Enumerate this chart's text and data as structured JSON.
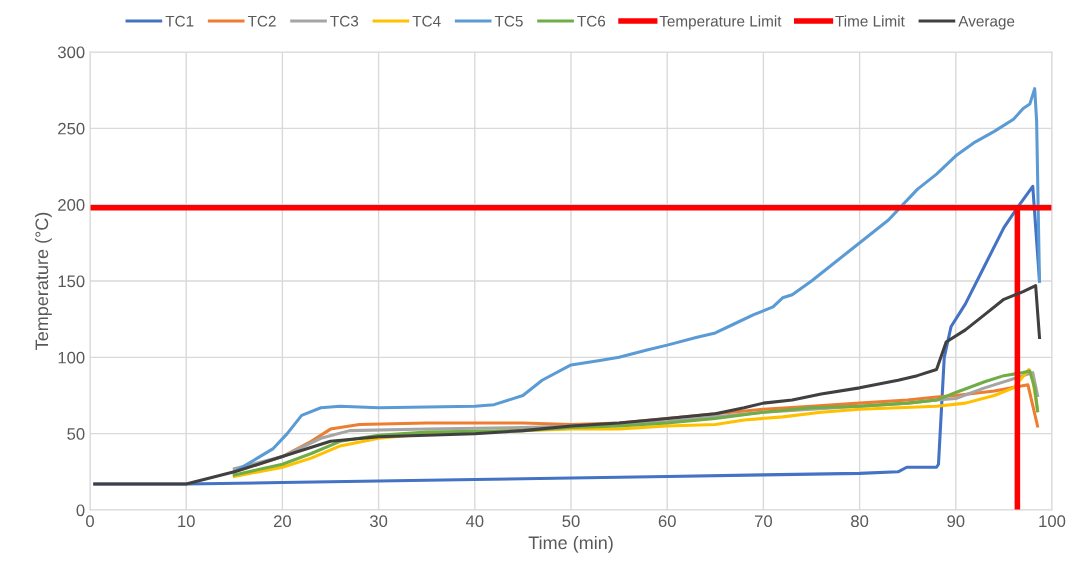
{
  "chart_data": {
    "type": "line",
    "xlabel": "Time (min)",
    "ylabel": "Temperature (°C)",
    "xlim": [
      0,
      100
    ],
    "ylim": [
      0,
      300
    ],
    "xticks": [
      0,
      10,
      20,
      30,
      40,
      50,
      60,
      70,
      80,
      90,
      100
    ],
    "yticks": [
      0,
      50,
      100,
      150,
      200,
      250,
      300
    ],
    "grid": true,
    "legend": "top",
    "marker": "none",
    "line_style": "solid",
    "series": [
      {
        "name": "TC1",
        "color": "#4472c4",
        "x": [
          0.5,
          10,
          20,
          30,
          40,
          50,
          60,
          70,
          80,
          84,
          84.9,
          88,
          88.2,
          88.8,
          89.5,
          91,
          93,
          95,
          96.4,
          98,
          98.7
        ],
        "values": [
          17,
          17,
          18,
          19,
          20,
          21,
          22,
          23,
          24,
          25,
          28,
          28,
          30,
          100,
          120,
          135,
          160,
          185,
          198,
          212,
          150
        ]
      },
      {
        "name": "TC2",
        "color": "#ed7d31",
        "x": [
          15,
          20,
          23,
          25,
          28,
          35,
          45,
          50,
          55,
          60,
          65,
          70,
          75,
          80,
          85,
          88,
          90,
          94,
          97.5,
          98.5
        ],
        "values": [
          25,
          35,
          45,
          53,
          56,
          57,
          57,
          56,
          57,
          60,
          63,
          66,
          68,
          70,
          72,
          74,
          75,
          78,
          82,
          55
        ]
      },
      {
        "name": "TC3",
        "color": "#a5a5a5",
        "x": [
          15,
          20,
          24,
          27,
          35,
          45,
          50,
          55,
          60,
          65,
          70,
          75,
          80,
          85,
          88,
          90,
          93,
          97,
          98,
          98.5
        ],
        "values": [
          27,
          35,
          47,
          52,
          53,
          54,
          55,
          56,
          58,
          61,
          64,
          66,
          68,
          70,
          72,
          73,
          80,
          88,
          90,
          75
        ]
      },
      {
        "name": "TC4",
        "color": "#ffc000",
        "x": [
          15,
          20,
          23,
          26,
          30,
          35,
          45,
          50,
          55,
          60,
          65,
          68,
          72,
          76,
          80,
          84,
          88,
          91,
          94,
          96,
          97.6,
          98,
          98.5
        ],
        "values": [
          22,
          28,
          34,
          42,
          47,
          50,
          52,
          53,
          53,
          55,
          56,
          59,
          61,
          64,
          66,
          67,
          68,
          70,
          75,
          80,
          92,
          85,
          65
        ]
      },
      {
        "name": "TC5",
        "color": "#5b9bd5",
        "x": [
          15,
          19,
          20.5,
          22,
          24,
          26,
          30,
          35,
          40,
          42,
          45,
          47,
          50,
          53,
          55,
          58,
          60,
          63,
          65,
          67,
          69,
          71,
          72,
          73,
          75,
          77,
          79,
          81,
          83,
          84.5,
          86,
          88,
          90,
          92,
          94,
          96,
          97,
          97.7,
          98.2,
          98.4,
          98.7
        ],
        "values": [
          25,
          40,
          50,
          62,
          67,
          68,
          67,
          67.5,
          68,
          69,
          75,
          85,
          95,
          98,
          100,
          105,
          108,
          113,
          116,
          122,
          128,
          133,
          139,
          141,
          150,
          160,
          170,
          180,
          190,
          200,
          210,
          220,
          232,
          241,
          248,
          256,
          263,
          266,
          276,
          255,
          150
        ]
      },
      {
        "name": "TC6",
        "color": "#70ad47",
        "x": [
          15,
          20,
          23,
          26,
          30,
          35,
          45,
          50,
          55,
          60,
          65,
          70,
          75,
          80,
          85,
          88,
          90,
          93,
          95,
          97,
          97.7,
          98.2,
          98.5
        ],
        "values": [
          23,
          30,
          37,
          45,
          49,
          51,
          52,
          54,
          55,
          57,
          60,
          64,
          67,
          68,
          70,
          72,
          77,
          84,
          88,
          90,
          91,
          80,
          65
        ]
      },
      {
        "name": "Temperature Limit",
        "color": "#ff0000",
        "x": [
          0,
          100
        ],
        "values": [
          198,
          198
        ]
      },
      {
        "name": "Time Limit",
        "color": "#ff0000",
        "x": [
          96.4,
          96.4
        ],
        "values": [
          0,
          198
        ]
      },
      {
        "name": "Average",
        "color": "#404040",
        "x": [
          0.5,
          10,
          15,
          20,
          25,
          30,
          40,
          45,
          50,
          55,
          60,
          65,
          68,
          70,
          73,
          76,
          80,
          84,
          86,
          88,
          89,
          91,
          93,
          95,
          97,
          98.3,
          98.7
        ],
        "values": [
          17,
          17,
          25,
          35,
          45,
          48,
          50,
          52,
          55,
          57,
          60,
          63,
          67,
          70,
          72,
          76,
          80,
          85,
          88,
          92,
          110,
          118,
          128,
          138,
          143,
          147,
          113
        ]
      }
    ]
  }
}
